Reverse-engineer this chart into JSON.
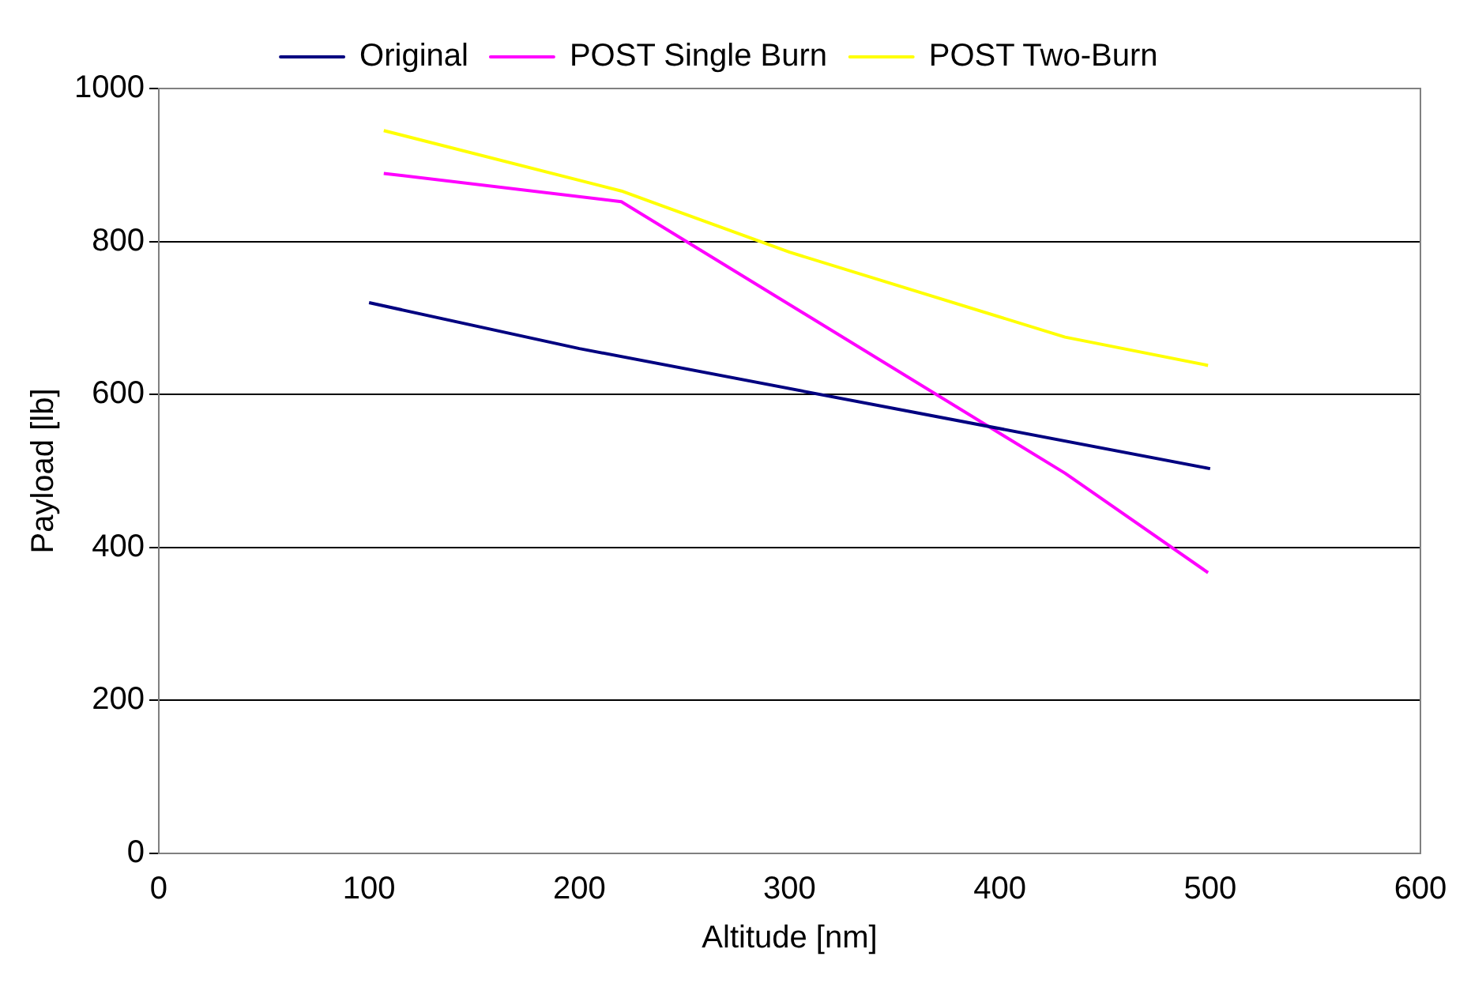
{
  "chart_data": {
    "type": "line",
    "xlabel": "Altitude [nm]",
    "ylabel": "Payload [lb]",
    "xlim": [
      0,
      600
    ],
    "xticks": [
      0,
      100,
      200,
      300,
      400,
      500,
      600
    ],
    "ylim": [
      0,
      1000
    ],
    "yticks": [
      0,
      200,
      400,
      600,
      800,
      1000
    ],
    "grid": "y",
    "legend": "top",
    "marker": "none",
    "line_style": "solid",
    "series": [
      {
        "name": "Original",
        "color": "#000080",
        "x": [
          100,
          200,
          500
        ],
        "values": [
          720,
          660,
          503
        ]
      },
      {
        "name": "POST Single Burn",
        "color": "#ff00ff",
        "x": [
          107,
          220,
          431,
          499
        ],
        "values": [
          889,
          852,
          497,
          367
        ]
      },
      {
        "name": "POST Two-Burn",
        "color": "#ffff00",
        "x": [
          107,
          220,
          300,
          431,
          499
        ],
        "values": [
          945,
          866,
          786,
          675,
          638
        ]
      }
    ]
  }
}
